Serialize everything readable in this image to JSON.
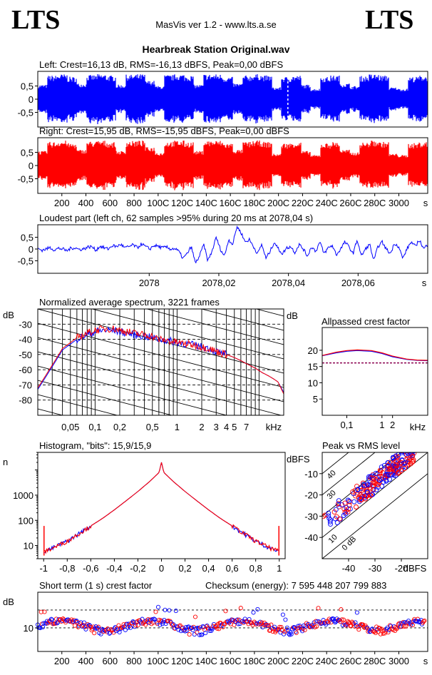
{
  "header": {
    "logo_left": "LTS",
    "logo_right": "LTS",
    "app_title": "MasVis ver 1.2 - www.lts.a.se",
    "file_title": "Hearbreak Station Original.wav"
  },
  "colors": {
    "left": "#0000ff",
    "right": "#ff0000",
    "axis": "#000000"
  },
  "chart_data": [
    {
      "id": "left-waveform",
      "type": "area",
      "title": "Left: Crest=16,13 dB, RMS=-16,13 dBFS, Peak=0,00 dBFS",
      "yticks": [
        "0,5",
        "0",
        "-0,5"
      ],
      "ylim": [
        -1,
        1
      ],
      "xlim": [
        0,
        3240
      ],
      "marker_x": 2078,
      "series": [
        {
          "values": [
            0.55,
            0.9,
            0.95,
            0.85,
            0.6,
            0.92,
            0.95,
            0.9,
            0.55,
            0.93,
            0.95,
            0.7,
            0.5,
            0.92,
            0.95,
            0.9,
            0.55,
            0.95,
            0.95,
            0.85,
            0.6,
            0.9,
            0.95,
            0.9,
            0.45,
            0.85,
            0.9,
            0.55,
            0.4,
            0.85,
            0.9,
            0.6,
            0.5,
            0.88,
            0.95,
            0.9,
            0.45,
            0.4,
            0.85,
            0.9
          ]
        }
      ]
    },
    {
      "id": "right-waveform",
      "type": "area",
      "title": "Right: Crest=15,95 dB, RMS=-15,95 dBFS, Peak=0,00 dBFS",
      "yticks": [
        "0,5",
        "0",
        "-0,5"
      ],
      "ylim": [
        -1,
        1
      ],
      "xlim": [
        0,
        3240
      ],
      "xticks": [
        "200",
        "400",
        "600",
        "800",
        "1000",
        "1200",
        "1400",
        "1600",
        "1800",
        "2000",
        "2200",
        "2400",
        "2600",
        "2800",
        "3000"
      ],
      "xtick_labels": [
        "200",
        "400",
        "600",
        "800",
        "100C",
        "120C",
        "140C",
        "160C",
        "180C",
        "200C",
        "220C",
        "240C",
        "260C",
        "280C",
        "3000"
      ],
      "xunit": "s",
      "series": [
        {
          "values": [
            0.55,
            0.9,
            0.95,
            0.85,
            0.6,
            0.92,
            0.95,
            0.9,
            0.55,
            0.93,
            0.95,
            0.7,
            0.5,
            0.92,
            0.95,
            0.9,
            0.55,
            0.95,
            0.95,
            0.85,
            0.6,
            0.9,
            0.95,
            0.9,
            0.45,
            0.85,
            0.9,
            0.55,
            0.4,
            0.85,
            0.9,
            0.6,
            0.5,
            0.88,
            0.95,
            0.9,
            0.45,
            0.4,
            0.85,
            0.9
          ]
        }
      ]
    },
    {
      "id": "loudest-part",
      "type": "line",
      "title": "Loudest part (left  ch, 62 samples >95% during 20 ms at 2078,04 s)",
      "yticks": [
        "0,5",
        "0",
        "-0,5"
      ],
      "ylim": [
        -1,
        1
      ],
      "xlim": [
        2077.968,
        2078.08
      ],
      "xticks": [
        2078,
        2078.02,
        2078.04,
        2078.06
      ],
      "xtick_labels": [
        "2078",
        "2078,02",
        "2078,04",
        "2078,06"
      ],
      "xunit": "s",
      "series": [
        {
          "values": [
            0.02,
            -0.05,
            0.0,
            0.06,
            -0.04,
            0.03,
            0.0,
            -0.08,
            0.04,
            0.05,
            -0.02,
            0.0,
            0.08,
            0.1,
            -0.05,
            0.12,
            0.05,
            0.0,
            0.15,
            0.1,
            0.2,
            0.05,
            0.1,
            0.18,
            0.05,
            0.22,
            0.1,
            0.0,
            0.15,
            0.12,
            0.05,
            0.08,
            0.0,
            0.02,
            -0.1,
            -0.4,
            -0.2,
            0.1,
            -0.6,
            -0.3,
            0.2,
            -0.5,
            -0.1,
            0.5,
            0.0,
            -0.3,
            0.4,
            0.2,
            0.96,
            0.7,
            0.3,
            0.4,
            0.1,
            -0.2,
            0.2,
            -0.4,
            -0.1,
            0.3,
            0.0,
            -0.2,
            0.05,
            0.1,
            -0.15,
            0.2,
            0.0,
            -0.3,
            0.1,
            -0.1,
            0.3,
            -0.2,
            0.05,
            0.15,
            -0.25,
            0.0,
            0.3,
            0.1,
            -0.2,
            0.4,
            -0.3,
            0.0,
            0.2,
            -0.5,
            0.1,
            0.3,
            0.0,
            -0.2,
            0.25,
            0.1,
            -0.4,
            0.0,
            0.3,
            0.1,
            0.4,
            0.0,
            0.2
          ]
        }
      ]
    },
    {
      "id": "spectrum",
      "type": "line",
      "title": "Normalized average spectrum, 3221 frames",
      "ylabel": "dB",
      "yticks": [
        -30,
        -40,
        -50,
        -60,
        -70,
        -80
      ],
      "ylim": [
        -90,
        -20
      ],
      "xscale": "log",
      "xlim": [
        0.02,
        20
      ],
      "xunit": "kHz",
      "xticks": [
        0.05,
        0.1,
        0.2,
        0.5,
        1,
        2,
        3,
        4,
        5,
        7
      ],
      "xtick_labels": [
        "0,05",
        "0,1",
        "0,2",
        "0,5",
        "1",
        "2",
        "3",
        "4",
        "5",
        "7"
      ],
      "series": [
        {
          "name": "left",
          "x": [
            0.02,
            0.03,
            0.04,
            0.06,
            0.08,
            0.1,
            0.13,
            0.17,
            0.2,
            0.25,
            0.3,
            0.4,
            0.5,
            0.6,
            0.8,
            1,
            1.3,
            1.7,
            2,
            2.5,
            3,
            4,
            5,
            6,
            7,
            9,
            11,
            13,
            15,
            17,
            20
          ],
          "y": [
            -73,
            -58,
            -47,
            -40,
            -37,
            -35,
            -34,
            -34,
            -35,
            -36,
            -37,
            -38,
            -39,
            -40,
            -41,
            -42,
            -43,
            -44,
            -45,
            -46,
            -48,
            -50,
            -52,
            -54,
            -56,
            -59,
            -62,
            -64,
            -66,
            -68,
            -75
          ]
        },
        {
          "name": "right",
          "x": [
            0.02,
            0.03,
            0.04,
            0.06,
            0.08,
            0.1,
            0.13,
            0.17,
            0.2,
            0.25,
            0.3,
            0.4,
            0.5,
            0.6,
            0.8,
            1,
            1.3,
            1.7,
            2,
            2.5,
            3,
            4,
            5,
            6,
            7,
            9,
            11,
            13,
            15,
            17,
            20
          ],
          "y": [
            -72,
            -57,
            -46,
            -39,
            -36,
            -34,
            -33,
            -33,
            -34,
            -35,
            -36,
            -37,
            -38,
            -40,
            -41,
            -42,
            -43,
            -44,
            -45,
            -46,
            -48,
            -50,
            -52,
            -54,
            -56,
            -59,
            -62,
            -64,
            -66,
            -68,
            -76
          ]
        }
      ]
    },
    {
      "id": "crest-factor",
      "type": "line",
      "title": "Allpassed crest factor",
      "ylabel": "dB",
      "yticks": [
        20,
        15,
        10,
        5
      ],
      "ylim": [
        0,
        27
      ],
      "xscale": "log",
      "xlim": [
        0.02,
        20
      ],
      "xunit": "kHz",
      "xticks": [
        0.1,
        1,
        2
      ],
      "xtick_labels": [
        "0,1",
        "1",
        "2"
      ],
      "reference": 16.1,
      "series": [
        {
          "name": "left",
          "x": [
            0.02,
            0.05,
            0.1,
            0.2,
            0.5,
            1,
            2,
            5,
            10,
            20
          ],
          "y": [
            18.3,
            19.2,
            19.7,
            19.9,
            19.7,
            19.0,
            18.0,
            17.2,
            16.9,
            16.8
          ]
        },
        {
          "name": "right",
          "x": [
            0.02,
            0.05,
            0.1,
            0.2,
            0.5,
            1,
            2,
            5,
            10,
            20
          ],
          "y": [
            18.4,
            19.4,
            19.9,
            20.1,
            19.9,
            19.2,
            18.2,
            17.3,
            17.0,
            16.9
          ]
        }
      ]
    },
    {
      "id": "histogram",
      "type": "line",
      "title": "Histogram, \"bits\": 15,9/15,9",
      "ylabel": "n",
      "yscale": "log",
      "ylim": [
        3,
        50000
      ],
      "yticks": [
        10,
        100,
        1000
      ],
      "ytick_labels": [
        "10",
        "100",
        "1000"
      ],
      "xlim": [
        -1.05,
        1.05
      ],
      "xticks": [
        -1,
        -0.8,
        -0.6,
        -0.4,
        -0.2,
        0,
        0.2,
        0.4,
        0.6,
        0.8,
        1
      ],
      "xtick_labels": [
        "-1",
        "-0,8",
        "-0,6",
        "-0,4",
        "-0,2",
        "0",
        "0,2",
        "0,4",
        "0,6",
        "0,8",
        "1"
      ],
      "series": [
        {
          "name": "left",
          "x": [
            -0.99,
            -0.95,
            -0.9,
            -0.8,
            -0.7,
            -0.6,
            -0.5,
            -0.4,
            -0.3,
            -0.2,
            -0.1,
            -0.02,
            0,
            0.02,
            0.1,
            0.2,
            0.3,
            0.4,
            0.5,
            0.6,
            0.7,
            0.8,
            0.9,
            0.95,
            0.99
          ],
          "y": [
            6,
            7,
            9,
            15,
            30,
            60,
            120,
            260,
            600,
            1400,
            3500,
            8000,
            20000,
            8000,
            3500,
            1400,
            600,
            260,
            120,
            60,
            30,
            15,
            9,
            7,
            6
          ]
        },
        {
          "name": "right",
          "x": [
            -0.99,
            -0.95,
            -0.9,
            -0.8,
            -0.7,
            -0.6,
            -0.5,
            -0.4,
            -0.3,
            -0.2,
            -0.1,
            -0.02,
            0,
            0.02,
            0.1,
            0.2,
            0.3,
            0.4,
            0.5,
            0.6,
            0.7,
            0.8,
            0.9,
            0.95,
            0.99
          ],
          "y": [
            6,
            7,
            9,
            15,
            30,
            60,
            120,
            260,
            600,
            1400,
            3500,
            8000,
            20000,
            8000,
            3500,
            1400,
            600,
            260,
            120,
            60,
            30,
            15,
            9,
            7,
            6
          ]
        }
      ]
    },
    {
      "id": "peak-vs-rms",
      "type": "scatter",
      "title": "Peak vs RMS level",
      "ylabel": "dBFS",
      "xunit": "dBFS",
      "xlim": [
        -50,
        -10
      ],
      "ylim": [
        -50,
        0
      ],
      "xticks": [
        -40,
        -30,
        -20
      ],
      "yticks": [
        -10,
        -20,
        -30,
        -40
      ],
      "diagonal_labels": [
        "40",
        "30",
        "10",
        "0 dB"
      ]
    },
    {
      "id": "short-term-crest",
      "type": "scatter",
      "title": "Short term (1 s) crest factor",
      "checksum": "Checksum (energy):  7 595 448 207 799 883",
      "ylabel": "dB",
      "yscale": "log",
      "ylim": [
        4,
        40
      ],
      "yticks": [
        10
      ],
      "ytick_labels": [
        "10"
      ],
      "reflines": [
        10,
        20
      ],
      "xlim": [
        0,
        3240
      ],
      "xunit": "s",
      "xticks": [
        "200",
        "400",
        "600",
        "800",
        "1000",
        "1200",
        "1400",
        "1600",
        "1800",
        "2000",
        "2200",
        "2400",
        "2600",
        "2800",
        "3000"
      ],
      "xtick_labels": [
        "200",
        "400",
        "600",
        "800",
        "100C",
        "120C",
        "140C",
        "160C",
        "180C",
        "200C",
        "220C",
        "240C",
        "260C",
        "280C",
        "3000"
      ]
    }
  ]
}
